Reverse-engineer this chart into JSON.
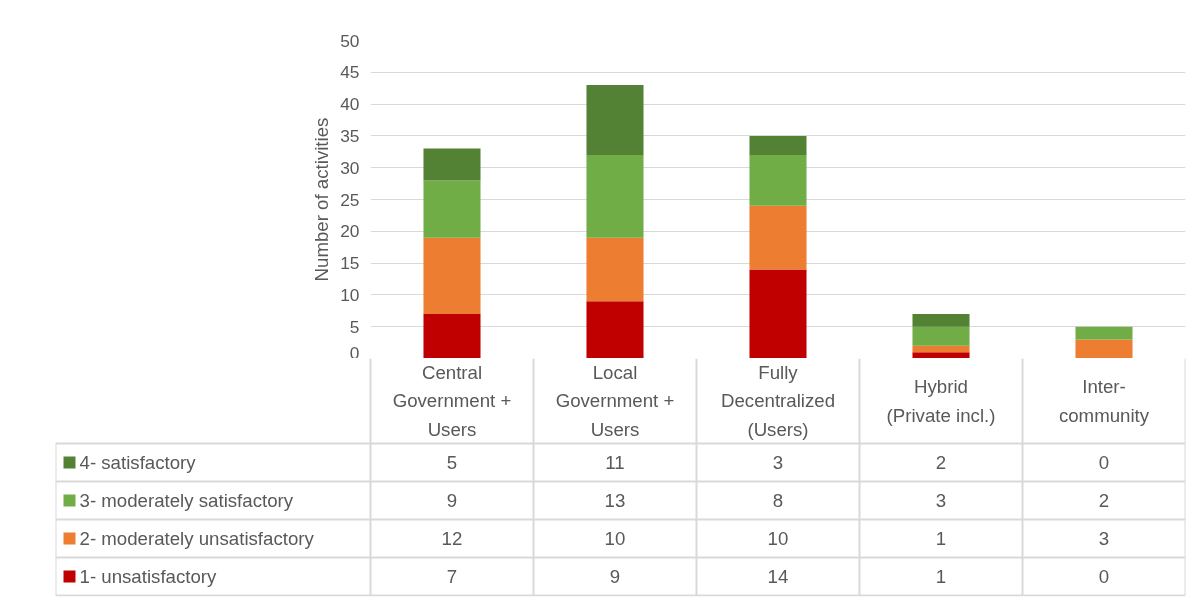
{
  "chart_data": {
    "type": "bar",
    "stacked": true,
    "ylabel": "Number of activities",
    "categories": [
      "Central\nGovernment +\nUsers",
      "Local\nGovernment +\nUsers",
      "Fully\nDecentralized\n(Users)",
      "Hybrid\n(Private incl.)",
      "Inter-\ncommunity"
    ],
    "series": [
      {
        "name": "1- unsatisfactory",
        "color": "#c00000",
        "values": [
          7,
          9,
          14,
          1,
          0
        ]
      },
      {
        "name": "2- moderately unsatisfactory",
        "color": "#ed7d31",
        "values": [
          12,
          10,
          10,
          1,
          3
        ]
      },
      {
        "name": "3- moderately satisfactory",
        "color": "#70ad47",
        "values": [
          9,
          13,
          8,
          3,
          2
        ]
      },
      {
        "name": "4- satisfactory",
        "color": "#548235",
        "values": [
          5,
          11,
          3,
          2,
          0
        ]
      }
    ],
    "ylim": [
      0,
      50
    ],
    "yticks": [
      0,
      5,
      10,
      15,
      20,
      25,
      30,
      35,
      40,
      45,
      50
    ],
    "grid": "y",
    "legend": "bottom",
    "data_labels": true
  }
}
